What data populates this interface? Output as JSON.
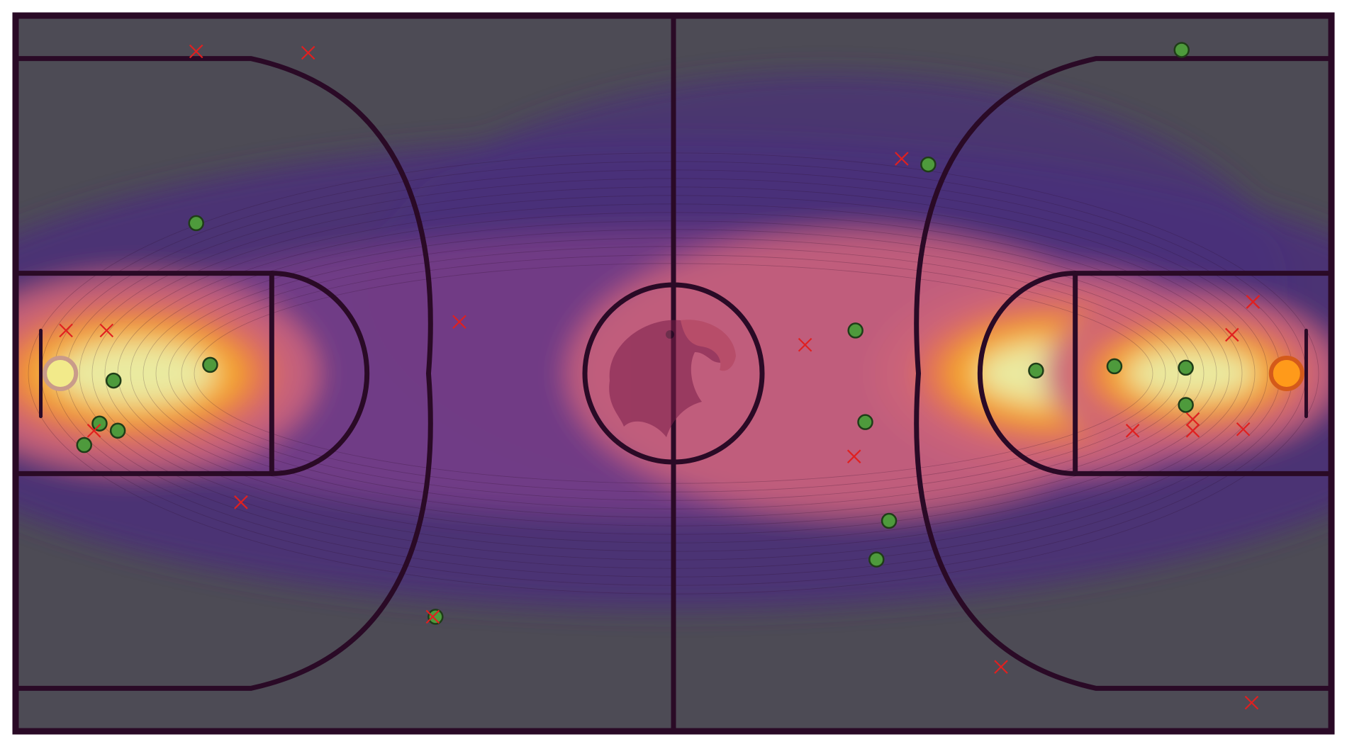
{
  "colors": {
    "background": "#ffffff",
    "floor": "#4d4b55",
    "line": "#2a0a26",
    "made": "#4e9a3c",
    "made_edge": "#1f3d18",
    "missed": "#e02020",
    "heat_low": "#4a2f7a",
    "heat_mid": "#c9627a",
    "heat_high": "#f5a623",
    "heat_peak": "#e9eea6"
  },
  "icons": {
    "center_logo": "eagle-head-icon"
  },
  "chart_data": {
    "type": "scatter",
    "title": "",
    "xlabel": "",
    "ylabel": "",
    "legend": "none",
    "grid": false,
    "court": {
      "units": "feet",
      "xlim": [
        0,
        94
      ],
      "ylim": [
        0,
        50
      ]
    },
    "density_overlay": {
      "type": "kde-contour",
      "colormap": "inferno-like",
      "hotspots": [
        {
          "name": "left-basket",
          "x": 8.5,
          "y": 25,
          "weight": 1.0
        },
        {
          "name": "right-basket",
          "x": 74.5,
          "y": 25,
          "weight": 1.0
        },
        {
          "name": "right-key",
          "x": 84,
          "y": 25,
          "weight": 0.8
        }
      ]
    },
    "series": [
      {
        "outcome": "made",
        "marker": "circle",
        "points": [
          [
            12.9,
            35.5
          ],
          [
            7.0,
            24.5
          ],
          [
            6.0,
            21.5
          ],
          [
            7.3,
            21.0
          ],
          [
            4.9,
            20.0
          ],
          [
            13.9,
            25.6
          ],
          [
            30.0,
            8.0
          ],
          [
            60.0,
            28.0
          ],
          [
            60.7,
            21.6
          ],
          [
            62.4,
            14.7
          ],
          [
            61.5,
            12.0
          ],
          [
            65.2,
            39.6
          ],
          [
            83.3,
            47.6
          ],
          [
            72.9,
            25.2
          ],
          [
            78.5,
            25.5
          ],
          [
            83.6,
            25.4
          ],
          [
            83.6,
            22.8
          ]
        ]
      },
      {
        "outcome": "missed",
        "marker": "x",
        "points": [
          [
            12.9,
            47.5
          ],
          [
            20.9,
            47.4
          ],
          [
            3.6,
            28.0
          ],
          [
            6.5,
            28.0
          ],
          [
            5.6,
            21.0
          ],
          [
            16.1,
            16.0
          ],
          [
            31.7,
            28.6
          ],
          [
            29.8,
            8.0
          ],
          [
            56.4,
            27.0
          ],
          [
            59.9,
            19.2
          ],
          [
            63.3,
            40.0
          ],
          [
            70.4,
            4.5
          ],
          [
            79.8,
            21.0
          ],
          [
            84.1,
            21.8
          ],
          [
            84.1,
            21.0
          ],
          [
            86.9,
            27.7
          ],
          [
            88.4,
            30.0
          ],
          [
            88.4,
            30.0
          ],
          [
            87.7,
            21.1
          ],
          [
            88.3,
            2.0
          ]
        ]
      }
    ]
  }
}
